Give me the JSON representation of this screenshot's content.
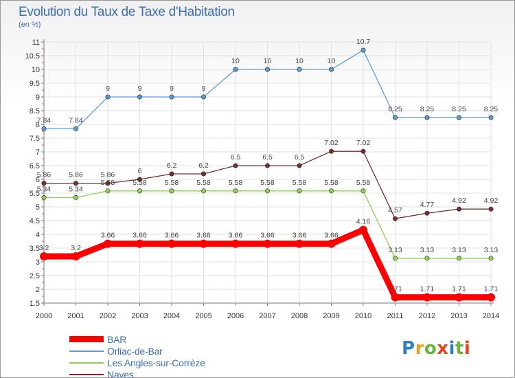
{
  "header": {
    "title": "Evolution du Taux de Taxe d'Habitation",
    "subtitle": "(en %)"
  },
  "logo": {
    "text": "Proxiti",
    "colors": [
      "#2f7fc4",
      "#e8a21b",
      "#6bb43c",
      "#e8431b",
      "#2f7fc4",
      "#6bb43c",
      "#e8431b"
    ]
  },
  "chart_data": {
    "type": "line",
    "title": "Evolution du Taux de Taxe d'Habitation",
    "subtitle": "(en %)",
    "xlabel": "",
    "ylabel": "",
    "x": [
      "2000",
      "2001",
      "2002",
      "2003",
      "2004",
      "2005",
      "2006",
      "2007",
      "2008",
      "2009",
      "2010",
      "2011",
      "2012",
      "2013",
      "2014"
    ],
    "ylim": [
      1.5,
      11
    ],
    "yticks": [
      "1.5",
      "2",
      "2.5",
      "3",
      "3.5",
      "4",
      "4.5",
      "5",
      "5.5",
      "6",
      "6.5",
      "7",
      "7.5",
      "8",
      "8.5",
      "9",
      "9.5",
      "10",
      "10.5",
      "11"
    ],
    "grid": true,
    "legend_position": "bottom-left",
    "series": [
      {
        "name": "Orliac-de-Bar",
        "color": "#5b9bd5",
        "values": [
          7.84,
          7.84,
          9,
          9,
          9,
          9,
          10,
          10,
          10,
          10,
          10.7,
          8.25,
          8.25,
          8.25,
          8.25
        ],
        "labels": [
          "7.84",
          "7.84",
          "9",
          "9",
          "9",
          "9",
          "10",
          "10",
          "10",
          "10",
          "10.7",
          "8.25",
          "8.25",
          "8.25",
          "8.25"
        ]
      },
      {
        "name": "Naves",
        "color": "#7b2c2c",
        "values": [
          5.86,
          5.86,
          5.86,
          6,
          6.2,
          6.2,
          6.5,
          6.5,
          6.5,
          7.02,
          7.02,
          4.57,
          4.77,
          4.92,
          4.92
        ],
        "labels": [
          "5.86",
          "5.86",
          "5.86",
          "6",
          "6.2",
          "6.2",
          "6.5",
          "6.5",
          "6.5",
          "7.02",
          "7.02",
          "4.57",
          "4.77",
          "4.92",
          "4.92"
        ]
      },
      {
        "name": "Les Angles-sur-Corrèze",
        "color": "#92d050",
        "values": [
          5.34,
          5.34,
          5.58,
          5.58,
          5.58,
          5.58,
          5.58,
          5.58,
          5.58,
          5.58,
          5.58,
          3.13,
          3.13,
          3.13,
          3.13
        ],
        "labels": [
          "5.34",
          "5.34",
          "5.58",
          "5.58",
          "5.58",
          "5.58",
          "5.58",
          "5.58",
          "5.58",
          "5.58",
          "5.58",
          "3.13",
          "3.13",
          "3.13",
          "3.13"
        ]
      },
      {
        "name": "BAR",
        "color": "#ff0000",
        "values": [
          3.2,
          3.2,
          3.66,
          3.66,
          3.66,
          3.66,
          3.66,
          3.66,
          3.66,
          3.66,
          4.16,
          1.71,
          1.71,
          1.71,
          1.71
        ],
        "labels": [
          "3.2",
          "3.2",
          "3.66",
          "3.66",
          "3.66",
          "3.66",
          "3.66",
          "3.66",
          "3.66",
          "3.66",
          "4.16",
          "1.71",
          "1.71",
          "1.71",
          "1.71"
        ]
      }
    ],
    "legend": [
      {
        "name": "BAR",
        "color": "#ff0000",
        "style": "thick"
      },
      {
        "name": "Orliac-de-Bar",
        "color": "#5b9bd5",
        "style": "thin"
      },
      {
        "name": "Les Angles-sur-Corrèze",
        "color": "#92d050",
        "style": "thin"
      },
      {
        "name": "Naves",
        "color": "#7b2c2c",
        "style": "thin"
      }
    ]
  }
}
